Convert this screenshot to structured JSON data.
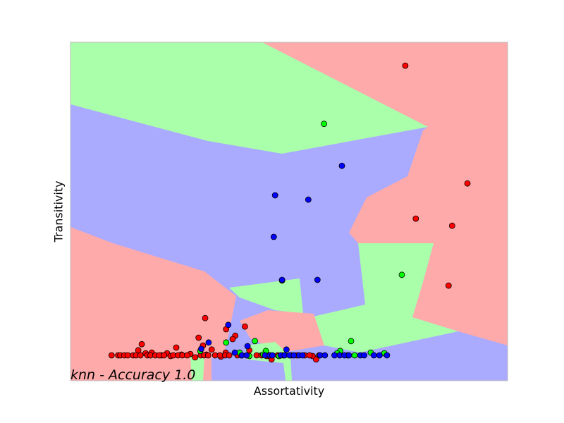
{
  "chart_data": {
    "type": "scatter",
    "title": "",
    "xlabel": "Assortativity",
    "ylabel": "Transitivity",
    "annotation": "knn - Accuracy 1.0",
    "xlim": [
      0,
      100
    ],
    "ylim": [
      0,
      100
    ],
    "ticks": "none",
    "grid": false,
    "legend": "none",
    "background": "decision regions",
    "colors": {
      "red_region": "#ffaaaa",
      "green_region": "#aaffaa",
      "blue_region": "#aaaaff",
      "red_point": "#ff0000",
      "green_point": "#00ff00",
      "blue_point": "#0000ff",
      "frame": "#bbbbbb"
    },
    "series": [
      {
        "color": "red",
        "points": [
          [
            76.6,
            93.1
          ],
          [
            90.8,
            58.3
          ],
          [
            79,
            47.9
          ],
          [
            87.3,
            45.8
          ],
          [
            86.5,
            28.1
          ],
          [
            30.8,
            18.5
          ],
          [
            39.9,
            16
          ],
          [
            35.6,
            15.2
          ],
          [
            37.7,
            13.3
          ],
          [
            37.1,
            12.3
          ],
          [
            29.3,
            12.7
          ],
          [
            16.3,
            10.8
          ],
          [
            30.3,
            10.4
          ],
          [
            40.9,
            9
          ],
          [
            22.1,
            8.1
          ],
          [
            24.2,
            9.8
          ],
          [
            25.4,
            7.7
          ],
          [
            32.3,
            9.2
          ],
          [
            31.1,
            7.7
          ],
          [
            35.5,
            8.3
          ],
          [
            15.5,
            9
          ],
          [
            17.2,
            8.1
          ],
          [
            18.6,
            8.3
          ],
          [
            20.8,
            7.5
          ],
          [
            22.9,
            7.3
          ],
          [
            27.4,
            7.9
          ],
          [
            28.5,
            6.9
          ],
          [
            34.4,
            7.1
          ],
          [
            44.9,
            7.3
          ],
          [
            46,
            6.3
          ],
          [
            55.4,
            7.3
          ],
          [
            56.2,
            6.3
          ],
          [
            9.4,
            7.5
          ],
          [
            10.9,
            7.5
          ],
          [
            11.4,
            7.5
          ],
          [
            12.3,
            7.5
          ],
          [
            13.1,
            7.5
          ],
          [
            14.3,
            7.5
          ],
          [
            15,
            7.5
          ],
          [
            16,
            7.5
          ],
          [
            17.6,
            7.5
          ],
          [
            18.3,
            7.5
          ],
          [
            19.4,
            7.5
          ],
          [
            20.3,
            7.5
          ],
          [
            21.4,
            7.5
          ],
          [
            23.5,
            7.5
          ],
          [
            24.6,
            7.5
          ],
          [
            25.6,
            7.5
          ],
          [
            26.7,
            7.5
          ],
          [
            29.8,
            7.5
          ],
          [
            30.6,
            7.5
          ],
          [
            31.5,
            7.5
          ],
          [
            33.1,
            7.5
          ],
          [
            34.2,
            7.5
          ],
          [
            35.4,
            7.5
          ],
          [
            36.3,
            7.5
          ],
          [
            38.2,
            7.5
          ],
          [
            39.1,
            7.5
          ],
          [
            42.6,
            7.5
          ],
          [
            43.7,
            7.5
          ],
          [
            45.5,
            7.5
          ],
          [
            47.4,
            7.5
          ],
          [
            48.7,
            7.5
          ],
          [
            50.5,
            7.5
          ],
          [
            51.8,
            7.5
          ],
          [
            53.6,
            7.5
          ],
          [
            54.7,
            7.5
          ],
          [
            56.9,
            7.5
          ]
        ]
      },
      {
        "color": "green",
        "points": [
          [
            58,
            75.9
          ],
          [
            75.8,
            31.3
          ],
          [
            48.4,
            29.6
          ],
          [
            35.6,
            11.3
          ],
          [
            42.2,
            11.7
          ],
          [
            64.2,
            11.7
          ],
          [
            29.7,
            8.8
          ],
          [
            44.7,
            8.8
          ],
          [
            61.7,
            8.8
          ],
          [
            38.7,
            8.3
          ],
          [
            61,
            8.1
          ],
          [
            68.7,
            8.3
          ],
          [
            71.8,
            8.1
          ],
          [
            44.1,
            7.7
          ],
          [
            63.4,
            7.5
          ],
          [
            65,
            7.5
          ],
          [
            40.9,
            7.3
          ],
          [
            47.7,
            7.3
          ]
        ]
      },
      {
        "color": "blue",
        "points": [
          [
            62.1,
            63.5
          ],
          [
            46.8,
            54.8
          ],
          [
            54.4,
            53.5
          ],
          [
            46.5,
            42.5
          ],
          [
            48.4,
            29.8
          ],
          [
            56.5,
            29.8
          ],
          [
            36.1,
            16.5
          ],
          [
            31.6,
            11.3
          ],
          [
            29.9,
            9.4
          ],
          [
            40.5,
            10.2
          ],
          [
            49.4,
            9.2
          ],
          [
            37.6,
            8.3
          ],
          [
            39.2,
            7.5
          ],
          [
            40.3,
            7.5
          ],
          [
            44.5,
            7.5
          ],
          [
            45.6,
            7.5
          ],
          [
            46.2,
            7.5
          ],
          [
            48.1,
            7.5
          ],
          [
            49,
            7.5
          ],
          [
            50.1,
            7.5
          ],
          [
            51.1,
            7.5
          ],
          [
            52.3,
            7.5
          ],
          [
            53.1,
            7.5
          ],
          [
            57.1,
            7.5
          ],
          [
            58.2,
            7.5
          ],
          [
            60.4,
            7.5
          ],
          [
            61.6,
            7.5
          ],
          [
            62.7,
            7.5
          ],
          [
            63.7,
            7.5
          ],
          [
            66.3,
            7.5
          ],
          [
            67.2,
            7.5
          ],
          [
            69.4,
            7.5
          ],
          [
            70.7,
            7.5
          ],
          [
            72.4,
            7.5
          ]
        ]
      }
    ]
  }
}
